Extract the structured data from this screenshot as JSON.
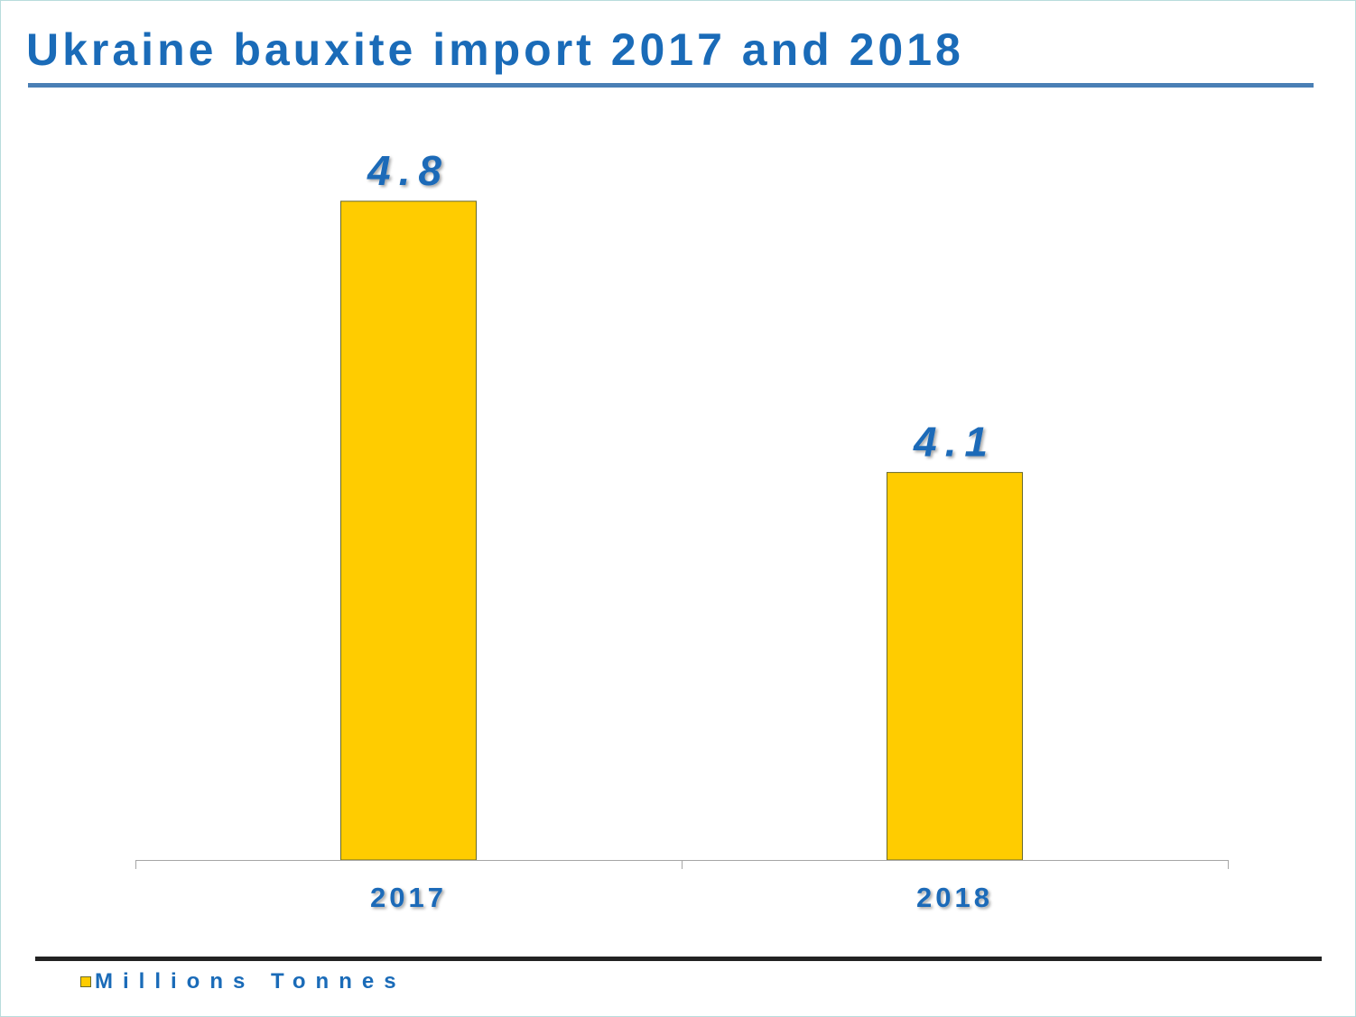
{
  "colors": {
    "accent": "#1a6bb8",
    "rule": "#4a7fb5",
    "bar": "#ffcc00",
    "bar_border": "#6a6a2a",
    "axis": "#a6a6a6",
    "footer_rule": "#222222"
  },
  "chart_data": {
    "type": "bar",
    "title": "Ukraine bauxite import 2017 and 2018",
    "categories": [
      "2017",
      "2018"
    ],
    "series": [
      {
        "name": "Millions Tonnes",
        "values": [
          4.8,
          4.1
        ]
      }
    ],
    "data_labels": [
      "4.8",
      "4.1"
    ],
    "xlabel": "",
    "ylabel": "",
    "ylim": [
      3.1,
      4.8
    ],
    "grid": false,
    "legend": "bottom-left"
  }
}
